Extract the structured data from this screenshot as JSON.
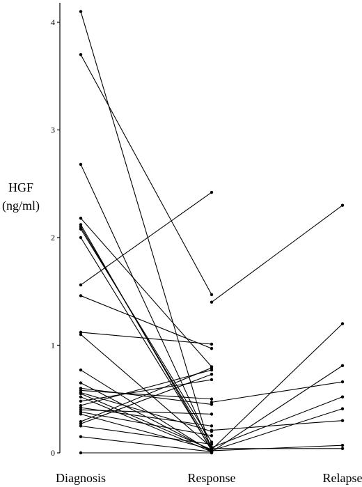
{
  "chart_data": {
    "type": "line",
    "title": "",
    "xlabel": "",
    "ylabel": [
      "HGF",
      "(ng/ml)"
    ],
    "categories": [
      "Diagnosis",
      "Response",
      "Relapse"
    ],
    "y_ticks": [
      "0",
      "1",
      "2",
      "3",
      "4"
    ],
    "ylim": [
      0,
      4.1
    ],
    "grid": false,
    "legend": "none",
    "line_color": "#000000",
    "series": [
      {
        "values": [
          4.1,
          0.0,
          null
        ]
      },
      {
        "values": [
          3.7,
          1.47,
          null
        ]
      },
      {
        "values": [
          2.68,
          0.05,
          null
        ]
      },
      {
        "values": [
          2.18,
          0.8,
          null
        ]
      },
      {
        "values": [
          2.12,
          0.02,
          null
        ]
      },
      {
        "values": [
          2.1,
          0.05,
          null
        ]
      },
      {
        "values": [
          2.08,
          0.1,
          null
        ]
      },
      {
        "values": [
          2.0,
          0.03,
          null
        ]
      },
      {
        "values": [
          1.56,
          2.42,
          null
        ]
      },
      {
        "values": [
          1.46,
          0.97,
          null
        ]
      },
      {
        "values": [
          1.12,
          1.01,
          null
        ]
      },
      {
        "values": [
          1.1,
          0.05,
          null
        ]
      },
      {
        "values": [
          0.77,
          0.01,
          null
        ]
      },
      {
        "values": [
          0.65,
          0.02,
          null
        ]
      },
      {
        "values": [
          0.6,
          0.45,
          null
        ]
      },
      {
        "values": [
          0.58,
          0.5,
          null
        ]
      },
      {
        "values": [
          0.56,
          0.2,
          null
        ]
      },
      {
        "values": [
          0.55,
          0.03,
          null
        ]
      },
      {
        "values": [
          0.52,
          0.01,
          null
        ]
      },
      {
        "values": [
          0.48,
          0.68,
          null
        ]
      },
      {
        "values": [
          0.44,
          0.77,
          null
        ]
      },
      {
        "values": [
          0.42,
          0.25,
          null
        ]
      },
      {
        "values": [
          0.4,
          0.36,
          null
        ]
      },
      {
        "values": [
          0.38,
          0.16,
          null
        ]
      },
      {
        "values": [
          0.36,
          0.03,
          null
        ]
      },
      {
        "values": [
          0.29,
          0.79,
          null
        ]
      },
      {
        "values": [
          0.27,
          0.73,
          null
        ]
      },
      {
        "values": [
          0.25,
          0.08,
          null
        ]
      },
      {
        "values": [
          0.15,
          0.01,
          null
        ]
      },
      {
        "values": [
          0.0,
          0.0,
          null
        ]
      },
      {
        "values": [
          null,
          1.4,
          2.3
        ]
      },
      {
        "values": [
          null,
          0.03,
          1.2
        ]
      },
      {
        "values": [
          null,
          0.01,
          0.81
        ]
      },
      {
        "values": [
          null,
          0.47,
          0.66
        ]
      },
      {
        "values": [
          null,
          0.05,
          0.52
        ]
      },
      {
        "values": [
          null,
          0.02,
          0.41
        ]
      },
      {
        "values": [
          null,
          0.21,
          0.3
        ]
      },
      {
        "values": [
          null,
          0.02,
          0.07
        ]
      },
      {
        "values": [
          null,
          0.04,
          0.04
        ]
      }
    ]
  }
}
